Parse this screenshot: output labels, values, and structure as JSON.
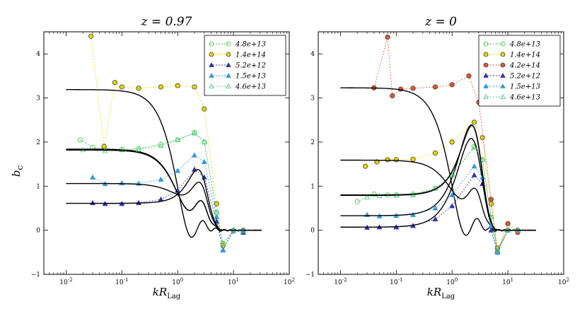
{
  "figure": {
    "ylabel": "b_c",
    "xlabel_main": "kR",
    "xlabel_sub": "Lag"
  },
  "chart_data": [
    {
      "type": "line",
      "title": "z = 0.97",
      "xlabel": "kR_Lag",
      "ylabel": "b_c",
      "xscale": "log",
      "xlim": [
        0.004,
        100
      ],
      "ylim": [
        -1,
        4.5
      ],
      "xticks": [
        "10^-2",
        "10^-1",
        "10^0",
        "10^1",
        "10^2"
      ],
      "yticks": [
        "-1",
        "0",
        "1",
        "2",
        "3",
        "4"
      ],
      "legend_position": "top-right",
      "series": [
        {
          "name": "4.8e+13",
          "marker": "circle-open",
          "color": "#3cc43c",
          "b0": 1.84,
          "peak": 0.38,
          "points": [
            [
              0.018,
              2.05
            ],
            [
              0.03,
              1.88
            ],
            [
              0.05,
              1.85
            ],
            [
              0.1,
              1.83
            ],
            [
              0.2,
              1.85
            ],
            [
              0.5,
              1.95
            ],
            [
              1.0,
              2.05
            ],
            [
              2.0,
              2.22
            ],
            [
              3.0,
              2.0
            ],
            [
              5.0,
              0.4
            ],
            [
              6.5,
              -0.3
            ],
            [
              10.0,
              0.0
            ],
            [
              15.0,
              -0.05
            ]
          ]
        },
        {
          "name": "1.4e+14",
          "marker": "circle",
          "color": "#e6d400",
          "b0": 3.19,
          "peak": 0.07,
          "points": [
            [
              0.028,
              4.4
            ],
            [
              0.048,
              1.9
            ],
            [
              0.075,
              3.35
            ],
            [
              0.1,
              3.25
            ],
            [
              0.2,
              3.22
            ],
            [
              0.5,
              3.25
            ],
            [
              1.0,
              3.28
            ],
            [
              2.0,
              3.25
            ],
            [
              3.0,
              2.75
            ],
            [
              5.0,
              0.6
            ],
            [
              6.5,
              -0.35
            ],
            [
              10.0,
              -0.02
            ],
            [
              15.0,
              0.0
            ]
          ]
        },
        {
          "name": "5.2e+12",
          "marker": "triangle",
          "color": "#3333aa",
          "b0": 0.61,
          "peak": 0.79,
          "points": [
            [
              0.03,
              0.62
            ],
            [
              0.05,
              0.6
            ],
            [
              0.1,
              0.6
            ],
            [
              0.2,
              0.62
            ],
            [
              0.5,
              0.7
            ],
            [
              1.0,
              0.9
            ],
            [
              2.0,
              1.38
            ],
            [
              3.0,
              1.2
            ],
            [
              5.0,
              0.2
            ],
            [
              6.5,
              -0.45
            ],
            [
              10.0,
              0.0
            ],
            [
              15.0,
              -0.05
            ]
          ]
        },
        {
          "name": "1.5e+13",
          "marker": "triangle",
          "color": "#3399dd",
          "b0": 1.06,
          "peak": 0.63,
          "points": [
            [
              0.03,
              1.2
            ],
            [
              0.05,
              1.05
            ],
            [
              0.1,
              1.07
            ],
            [
              0.2,
              1.06
            ],
            [
              0.5,
              1.15
            ],
            [
              1.0,
              1.35
            ],
            [
              2.0,
              1.7
            ],
            [
              3.0,
              1.55
            ],
            [
              5.0,
              0.3
            ],
            [
              6.5,
              -0.45
            ],
            [
              10.0,
              0.0
            ],
            [
              15.0,
              0.0
            ]
          ]
        },
        {
          "name": "4.6e+13",
          "marker": "triangle-open",
          "color": "#55cc88",
          "b0": 1.82,
          "peak": 0.38,
          "points": [
            [
              0.02,
              1.82
            ],
            [
              0.05,
              1.8
            ],
            [
              0.1,
              1.82
            ],
            [
              0.2,
              1.83
            ],
            [
              0.5,
              1.92
            ],
            [
              1.0,
              2.05
            ],
            [
              2.0,
              2.2
            ],
            [
              3.0,
              2.0
            ],
            [
              5.0,
              0.4
            ],
            [
              6.5,
              -0.3
            ],
            [
              10.0,
              0.0
            ],
            [
              15.0,
              -0.02
            ]
          ]
        }
      ]
    },
    {
      "type": "line",
      "title": "z = 0",
      "xlabel": "kR_Lag",
      "ylabel": "b_c",
      "xscale": "log",
      "xlim": [
        0.004,
        100
      ],
      "ylim": [
        -1,
        4.5
      ],
      "xticks": [
        "10^-2",
        "10^-1",
        "10^0",
        "10^1",
        "10^2"
      ],
      "yticks": [
        "-1",
        "0",
        "1",
        "2",
        "3",
        "4"
      ],
      "legend_position": "top-right",
      "series": [
        {
          "name": "4.8e+13",
          "marker": "circle-open",
          "color": "#3cc43c",
          "b0": 0.8,
          "peak": 1.36,
          "points": [
            [
              0.02,
              0.65
            ],
            [
              0.04,
              0.82
            ],
            [
              0.07,
              0.8
            ],
            [
              0.1,
              0.8
            ],
            [
              0.2,
              0.82
            ],
            [
              0.5,
              0.95
            ],
            [
              1.0,
              1.25
            ],
            [
              2.5,
              1.9
            ],
            [
              3.5,
              1.6
            ],
            [
              5.0,
              0.3
            ],
            [
              6.5,
              -0.45
            ],
            [
              10.0,
              0.0
            ],
            [
              15.0,
              -0.02
            ]
          ]
        },
        {
          "name": "1.4e+14",
          "marker": "circle",
          "color": "#e6d400",
          "b0": 1.59,
          "peak": 0.55,
          "points": [
            [
              0.028,
              1.45
            ],
            [
              0.045,
              1.55
            ],
            [
              0.07,
              1.6
            ],
            [
              0.1,
              1.6
            ],
            [
              0.2,
              1.61
            ],
            [
              0.5,
              1.75
            ],
            [
              1.0,
              2.0
            ],
            [
              2.5,
              2.45
            ],
            [
              3.5,
              2.1
            ],
            [
              5.0,
              0.6
            ],
            [
              6.5,
              -0.4
            ],
            [
              10.0,
              0.0
            ],
            [
              15.0,
              0.0
            ]
          ]
        },
        {
          "name": "4.2e+14",
          "marker": "circle",
          "color": "#e05530",
          "b0": 3.23,
          "peak": 0.1,
          "points": [
            [
              0.04,
              3.23
            ],
            [
              0.07,
              4.38
            ],
            [
              0.085,
              3.05
            ],
            [
              0.12,
              3.2
            ],
            [
              0.2,
              3.22
            ],
            [
              0.5,
              3.25
            ],
            [
              1.0,
              3.3
            ],
            [
              2.0,
              3.5
            ],
            [
              3.0,
              2.9
            ],
            [
              5.0,
              0.7
            ],
            [
              6.5,
              -0.5
            ],
            [
              10.0,
              0.15
            ],
            [
              15.0,
              -0.05
            ]
          ]
        },
        {
          "name": "5.2e+12",
          "marker": "triangle",
          "color": "#3333aa",
          "b0": 0.07,
          "peak": 1.18,
          "points": [
            [
              0.03,
              0.06
            ],
            [
              0.05,
              0.07
            ],
            [
              0.1,
              0.07
            ],
            [
              0.2,
              0.1
            ],
            [
              0.5,
              0.25
            ],
            [
              1.0,
              0.55
            ],
            [
              2.5,
              1.25
            ],
            [
              3.5,
              1.05
            ],
            [
              5.0,
              0.0
            ],
            [
              6.5,
              -0.5
            ],
            [
              10.0,
              0.0
            ],
            [
              15.0,
              0.0
            ]
          ]
        },
        {
          "name": "1.5e+13",
          "marker": "triangle",
          "color": "#3399dd",
          "b0": 0.33,
          "peak": 1.36,
          "points": [
            [
              0.03,
              0.35
            ],
            [
              0.05,
              0.32
            ],
            [
              0.1,
              0.33
            ],
            [
              0.2,
              0.35
            ],
            [
              0.5,
              0.5
            ],
            [
              1.0,
              0.8
            ],
            [
              2.5,
              1.45
            ],
            [
              3.5,
              1.2
            ],
            [
              5.0,
              0.1
            ],
            [
              6.5,
              -0.5
            ],
            [
              10.0,
              0.0
            ],
            [
              15.0,
              0.0
            ]
          ]
        },
        {
          "name": "4.6e+13",
          "marker": "triangle-open",
          "color": "#55cc88",
          "b0": 0.79,
          "peak": 1.36,
          "points": [
            [
              0.03,
              0.75
            ],
            [
              0.05,
              0.78
            ],
            [
              0.1,
              0.79
            ],
            [
              0.2,
              0.8
            ],
            [
              0.5,
              0.95
            ],
            [
              1.0,
              1.25
            ],
            [
              2.5,
              1.88
            ],
            [
              3.5,
              1.6
            ],
            [
              5.0,
              0.3
            ],
            [
              6.5,
              -0.45
            ],
            [
              10.0,
              0.0
            ],
            [
              15.0,
              0.0
            ]
          ]
        }
      ]
    }
  ]
}
